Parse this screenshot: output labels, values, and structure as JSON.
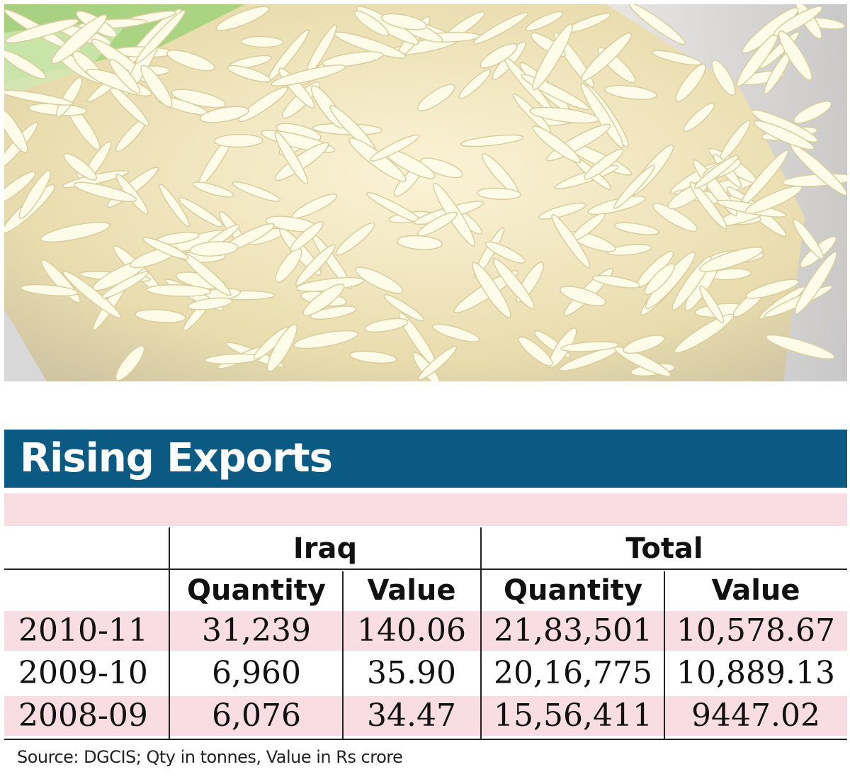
{
  "title": "Rising Exports",
  "source": "Source: DGCIS; Qty in tonnes, Value in Rs crore",
  "colors": {
    "title_bar": "#0a5a84",
    "row_highlight": "#f8dde3"
  },
  "chart_data": {
    "type": "table",
    "title": "Rising Exports",
    "groups": [
      "Iraq",
      "Total"
    ],
    "columns": [
      "Quantity",
      "Value",
      "Quantity",
      "Value"
    ],
    "rows": [
      {
        "year": "2010-11",
        "values": [
          "31,239",
          "140.06",
          "21,83,501",
          "10,578.67"
        ]
      },
      {
        "year": "2009-10",
        "values": [
          "6,960",
          "35.90",
          "20,16,775",
          "10,889.13"
        ]
      },
      {
        "year": "2008-09",
        "values": [
          "6,076",
          "34.47",
          "15,56,411",
          "9447.02"
        ]
      }
    ]
  }
}
